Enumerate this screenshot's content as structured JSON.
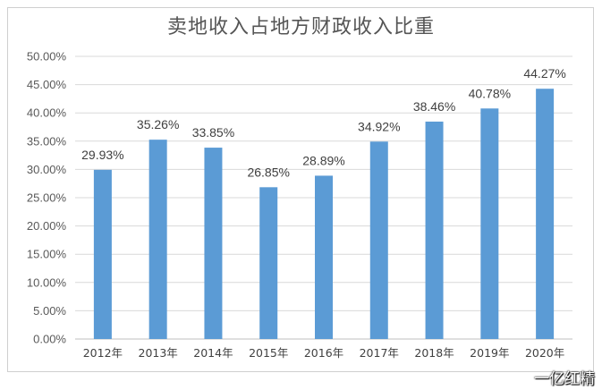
{
  "chart_data": {
    "type": "bar",
    "title": "卖地收入占地方财政收入比重",
    "categories": [
      "2012年",
      "2013年",
      "2014年",
      "2015年",
      "2016年",
      "2017年",
      "2018年",
      "2019年",
      "2020年"
    ],
    "values": [
      29.93,
      35.26,
      33.85,
      26.85,
      28.89,
      34.92,
      38.46,
      40.78,
      44.27
    ],
    "data_labels": [
      "29.93%",
      "35.26%",
      "33.85%",
      "26.85%",
      "28.89%",
      "34.92%",
      "38.46%",
      "40.78%",
      "44.27%"
    ],
    "ylim": [
      0,
      50
    ],
    "yticks": [
      0,
      5,
      10,
      15,
      20,
      25,
      30,
      35,
      40,
      45,
      50
    ],
    "ytick_labels": [
      "0.00%",
      "5.00%",
      "10.00%",
      "15.00%",
      "20.00%",
      "25.00%",
      "30.00%",
      "35.00%",
      "40.00%",
      "45.00%",
      "50.00%"
    ],
    "xlabel": "",
    "ylabel": "",
    "grid": true,
    "bar_color": "#5b9bd5",
    "grid_color": "#d9d9d9"
  },
  "watermark": "一亿红精"
}
